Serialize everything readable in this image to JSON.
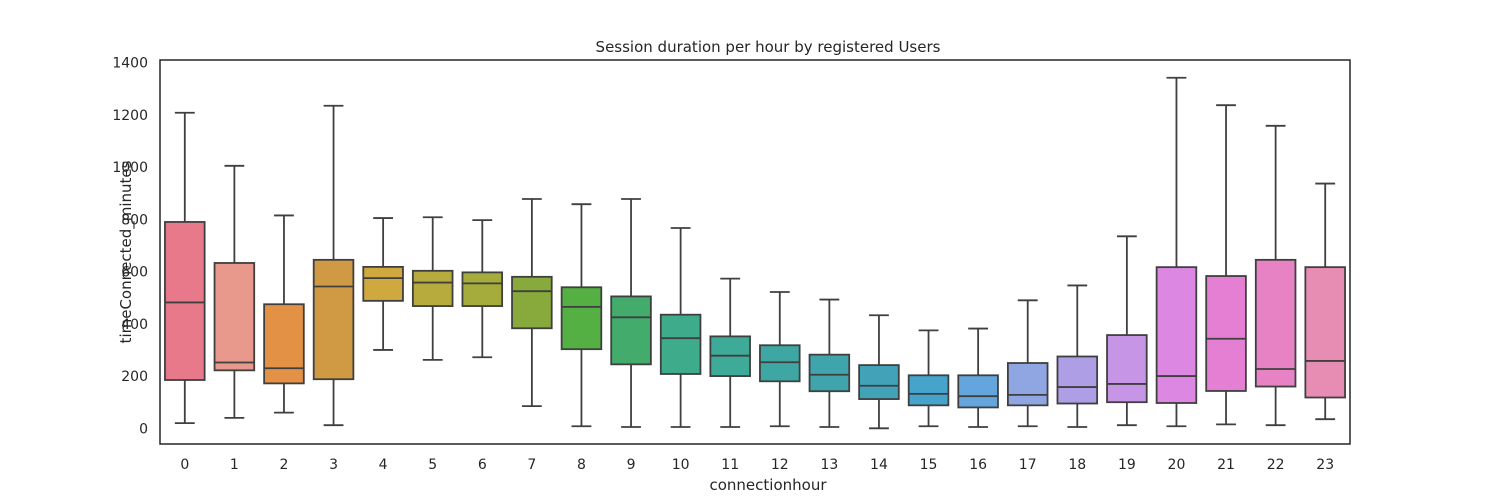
{
  "chart_data": {
    "type": "box",
    "title": "Session duration per hour by registered Users",
    "xlabel": "connectionhour",
    "ylabel": "timeConnected_minutes",
    "ylim": [
      -60,
      1410
    ],
    "yticks": [
      0,
      200,
      400,
      600,
      800,
      1000,
      1200,
      1400
    ],
    "grid": false,
    "categories": [
      "0",
      "1",
      "2",
      "3",
      "4",
      "5",
      "6",
      "7",
      "8",
      "9",
      "10",
      "11",
      "12",
      "13",
      "14",
      "15",
      "16",
      "17",
      "18",
      "19",
      "20",
      "21",
      "22",
      "23"
    ],
    "boxes": [
      {
        "whisker_low": 20,
        "q1": 185,
        "median": 482,
        "q3": 790,
        "whisker_high": 1208,
        "color": "#e8798b"
      },
      {
        "whisker_low": 40,
        "q1": 222,
        "median": 252,
        "q3": 633,
        "whisker_high": 1005,
        "color": "#e8998b"
      },
      {
        "whisker_low": 60,
        "q1": 172,
        "median": 230,
        "q3": 475,
        "whisker_high": 815,
        "color": "#e39145"
      },
      {
        "whisker_low": 12,
        "q1": 188,
        "median": 543,
        "q3": 645,
        "whisker_high": 1235,
        "color": "#d09a45"
      },
      {
        "whisker_low": 300,
        "q1": 488,
        "median": 575,
        "q3": 618,
        "whisker_high": 805,
        "color": "#cfa93f"
      },
      {
        "whisker_low": 262,
        "q1": 468,
        "median": 558,
        "q3": 603,
        "whisker_high": 808,
        "color": "#b8ab3e"
      },
      {
        "whisker_low": 272,
        "q1": 468,
        "median": 555,
        "q3": 597,
        "whisker_high": 797,
        "color": "#a6ac3c"
      },
      {
        "whisker_low": 85,
        "q1": 383,
        "median": 525,
        "q3": 580,
        "whisker_high": 878,
        "color": "#88aa3c"
      },
      {
        "whisker_low": 8,
        "q1": 303,
        "median": 465,
        "q3": 540,
        "whisker_high": 858,
        "color": "#54b042"
      },
      {
        "whisker_low": 5,
        "q1": 245,
        "median": 425,
        "q3": 505,
        "whisker_high": 878,
        "color": "#43ab6b"
      },
      {
        "whisker_low": 5,
        "q1": 208,
        "median": 345,
        "q3": 435,
        "whisker_high": 767,
        "color": "#3eac8a"
      },
      {
        "whisker_low": 5,
        "q1": 200,
        "median": 278,
        "q3": 352,
        "whisker_high": 573,
        "color": "#3dab98"
      },
      {
        "whisker_low": 8,
        "q1": 180,
        "median": 253,
        "q3": 318,
        "whisker_high": 522,
        "color": "#3ea7a3"
      },
      {
        "whisker_low": 5,
        "q1": 142,
        "median": 205,
        "q3": 282,
        "whisker_high": 493,
        "color": "#3fa4ab"
      },
      {
        "whisker_low": 0,
        "q1": 112,
        "median": 163,
        "q3": 242,
        "whisker_high": 433,
        "color": "#41a2b8"
      },
      {
        "whisker_low": 8,
        "q1": 88,
        "median": 132,
        "q3": 203,
        "whisker_high": 375,
        "color": "#46a3cb"
      },
      {
        "whisker_low": 5,
        "q1": 80,
        "median": 123,
        "q3": 203,
        "whisker_high": 382,
        "color": "#65a5dd"
      },
      {
        "whisker_low": 8,
        "q1": 88,
        "median": 128,
        "q3": 250,
        "whisker_high": 490,
        "color": "#8fa6e2"
      },
      {
        "whisker_low": 5,
        "q1": 95,
        "median": 158,
        "q3": 275,
        "whisker_high": 547,
        "color": "#ae9ee6"
      },
      {
        "whisker_low": 12,
        "q1": 100,
        "median": 170,
        "q3": 357,
        "whisker_high": 735,
        "color": "#c695e6"
      },
      {
        "whisker_low": 8,
        "q1": 97,
        "median": 200,
        "q3": 617,
        "whisker_high": 1342,
        "color": "#dc88e2"
      },
      {
        "whisker_low": 15,
        "q1": 143,
        "median": 343,
        "q3": 583,
        "whisker_high": 1237,
        "color": "#e57fd4"
      },
      {
        "whisker_low": 12,
        "q1": 160,
        "median": 227,
        "q3": 645,
        "whisker_high": 1158,
        "color": "#e783c5"
      },
      {
        "whisker_low": 35,
        "q1": 118,
        "median": 258,
        "q3": 617,
        "whisker_high": 937,
        "color": "#e78db4"
      }
    ]
  }
}
